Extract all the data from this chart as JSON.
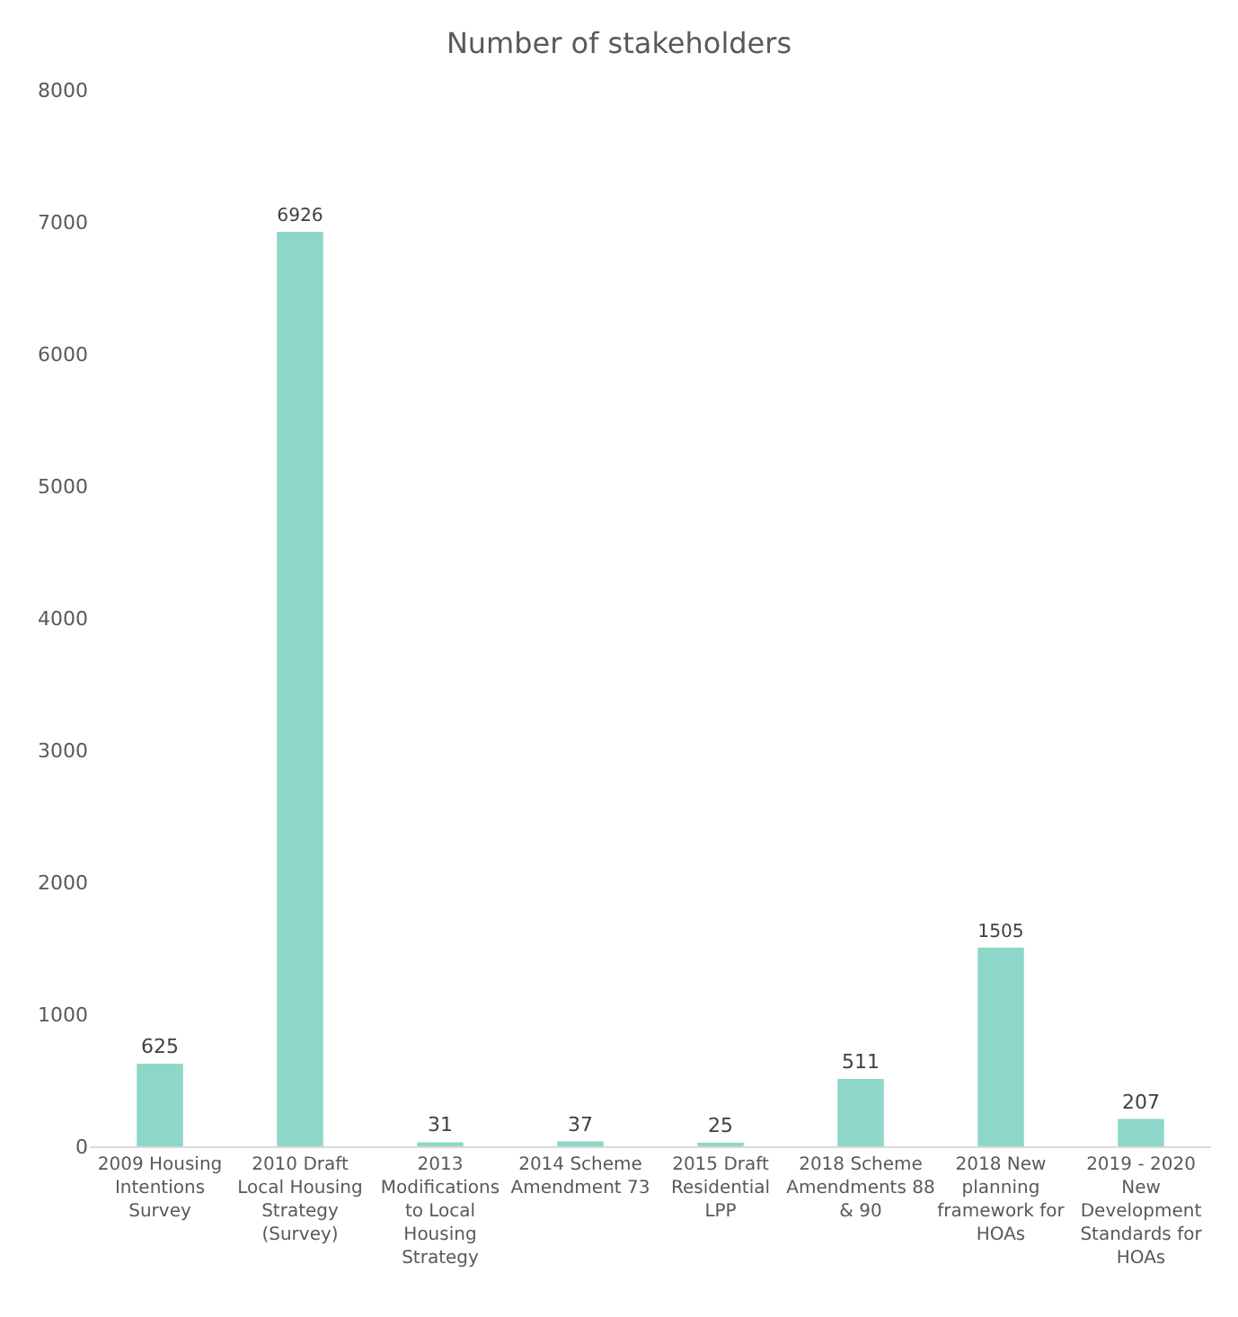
{
  "chart_data": {
    "type": "bar",
    "title": "Number of stakeholders",
    "categories": [
      "2009 Housing Intentions Survey",
      "2010 Draft Local Housing Strategy (Survey)",
      "2013 Modifications to Local Housing Strategy",
      "2014 Scheme Amendment 73",
      "2015 Draft Residential LPP",
      "2018 Scheme Amendments 88 & 90",
      "2018 New planning framework for HOAs",
      "2019 - 2020 New Development Standards for HOAs"
    ],
    "values": [
      625,
      6926,
      31,
      37,
      25,
      511,
      1505,
      207
    ],
    "color": "#8dd7c8",
    "data_labels": true,
    "ylim": [
      0,
      8000
    ],
    "yticks": [
      0,
      1000,
      2000,
      3000,
      4000,
      5000,
      6000,
      7000,
      8000
    ],
    "grid": false
  }
}
